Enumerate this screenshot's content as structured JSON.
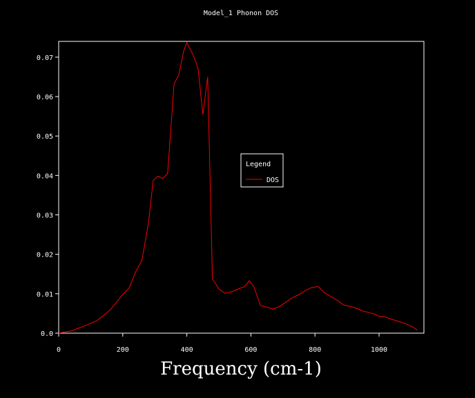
{
  "chart_data": {
    "type": "line",
    "title": "Model_1 Phonon DOS",
    "xlabel": "Frequency (cm-1)",
    "ylabel": "",
    "xlim": [
      0,
      1140
    ],
    "ylim": [
      0,
      0.074
    ],
    "xticks": [
      0,
      200,
      400,
      600,
      800,
      1000
    ],
    "xtick_labels": [
      "0",
      "200",
      "400",
      "600",
      "800",
      "1000"
    ],
    "yticks": [
      0.0,
      0.01,
      0.02,
      0.03,
      0.04,
      0.05,
      0.06,
      0.07
    ],
    "ytick_labels": [
      "0.0",
      "0.01",
      "0.02",
      "0.03",
      "0.04",
      "0.05",
      "0.06",
      "0.07"
    ],
    "grid": false,
    "legend": {
      "title": "Legend",
      "placement": "center-right"
    },
    "series": [
      {
        "name": "DOS",
        "color": "#ff0000",
        "x": [
          0,
          20,
          40,
          60,
          80,
          100,
          120,
          140,
          160,
          180,
          200,
          220,
          240,
          260,
          280,
          295,
          310,
          325,
          340,
          360,
          375,
          390,
          400,
          410,
          420,
          435,
          450,
          465,
          480,
          500,
          520,
          540,
          560,
          580,
          595,
          610,
          630,
          650,
          670,
          690,
          710,
          730,
          750,
          770,
          790,
          810,
          830,
          850,
          870,
          890,
          910,
          930,
          950,
          970,
          990,
          1000,
          1020,
          1040,
          1060,
          1080,
          1100,
          1120
        ],
        "y": [
          0.0,
          0.0003,
          0.0006,
          0.0012,
          0.0018,
          0.0025,
          0.0032,
          0.0045,
          0.0058,
          0.0078,
          0.0098,
          0.0115,
          0.0155,
          0.0185,
          0.0278,
          0.0387,
          0.0398,
          0.0392,
          0.0405,
          0.0632,
          0.0655,
          0.0715,
          0.0737,
          0.072,
          0.0705,
          0.0672,
          0.0555,
          0.065,
          0.0138,
          0.0112,
          0.0101,
          0.0105,
          0.0112,
          0.0118,
          0.0133,
          0.0116,
          0.007,
          0.0066,
          0.0061,
          0.0068,
          0.0079,
          0.009,
          0.0098,
          0.0108,
          0.0116,
          0.0118,
          0.0102,
          0.0093,
          0.0083,
          0.0071,
          0.0068,
          0.0063,
          0.0056,
          0.0052,
          0.0047,
          0.0043,
          0.0041,
          0.0035,
          0.003,
          0.0025,
          0.0018,
          0.0008
        ]
      }
    ]
  }
}
